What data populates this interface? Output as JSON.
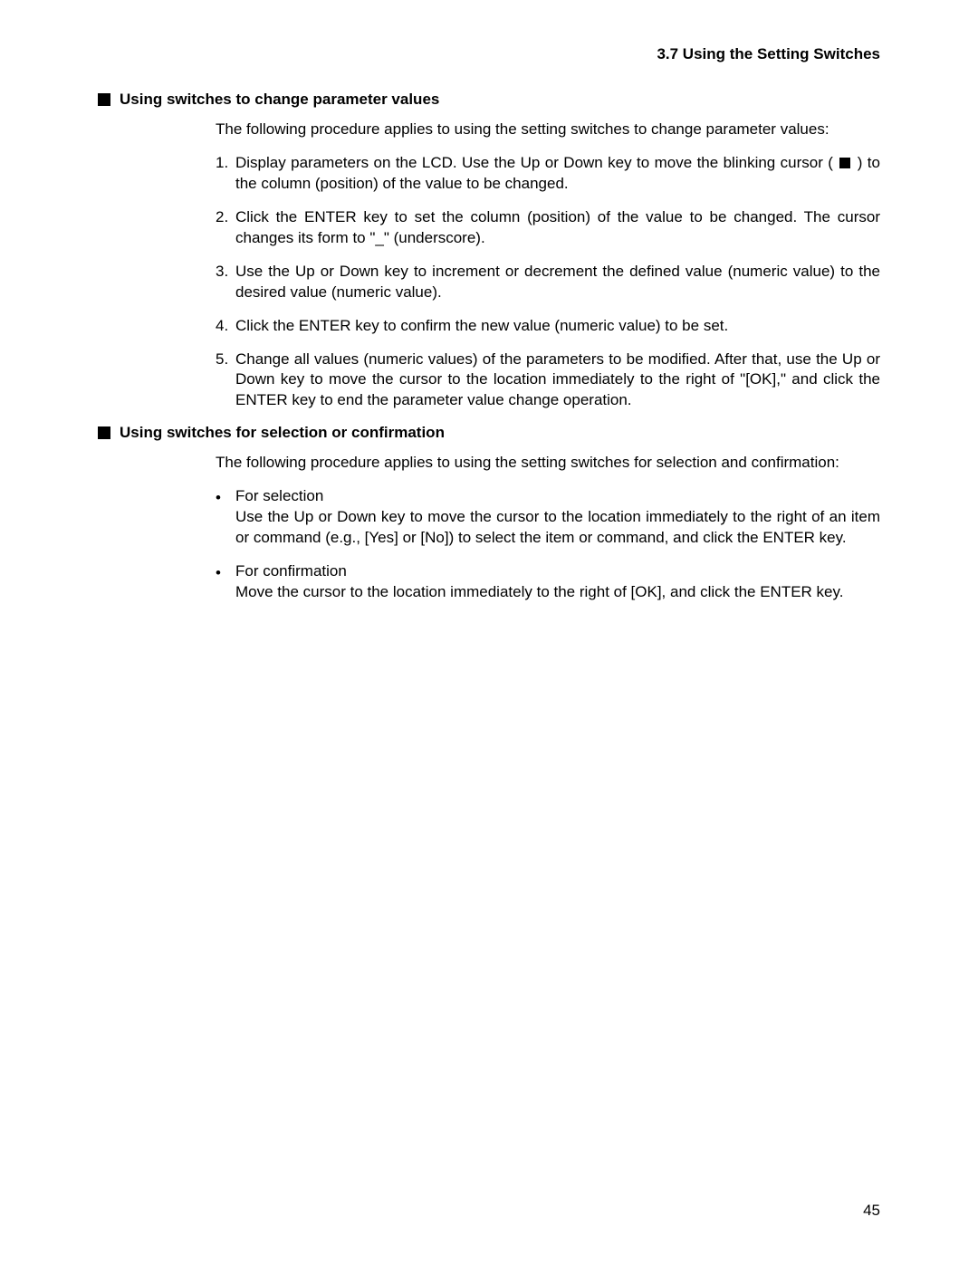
{
  "header": {
    "title": "3.7  Using the Setting Switches"
  },
  "section1": {
    "heading": "Using switches to change parameter values",
    "intro": "The following procedure applies to using the setting switches to change parameter values:",
    "steps": [
      {
        "num": "1.",
        "text_a": "Display parameters on the LCD. Use the Up or Down key to move the blinking cursor ( ",
        "text_b": " ) to the column (position) of the value to be changed."
      },
      {
        "num": "2.",
        "text": "Click the ENTER key to set the column (position) of the value to be changed. The cursor changes its form to \"_\" (underscore)."
      },
      {
        "num": "3.",
        "text": "Use the Up or Down key to increment or decrement the defined value (numeric value) to the desired value (numeric value)."
      },
      {
        "num": "4.",
        "text": "Click the ENTER key to confirm the new value (numeric value) to be set."
      },
      {
        "num": "5.",
        "text": "Change all values (numeric values) of the parameters to be modified. After that, use the Up or Down key to move the cursor to the location immediately to the right of \"[OK],\" and click the ENTER key to end the parameter value change operation."
      }
    ]
  },
  "section2": {
    "heading": "Using switches for selection or confirmation",
    "intro": "The following procedure applies to using the setting switches for selection and confirmation:",
    "bullets": [
      {
        "title": "For selection",
        "text": "Use the Up or Down key to move the cursor to the location immediately to the right of an item or command (e.g., [Yes] or [No]) to select the item or command, and click the ENTER key."
      },
      {
        "title": "For confirmation",
        "text": "Move the cursor to the location immediately to the right of [OK], and click the ENTER key."
      }
    ]
  },
  "page_number": "45"
}
